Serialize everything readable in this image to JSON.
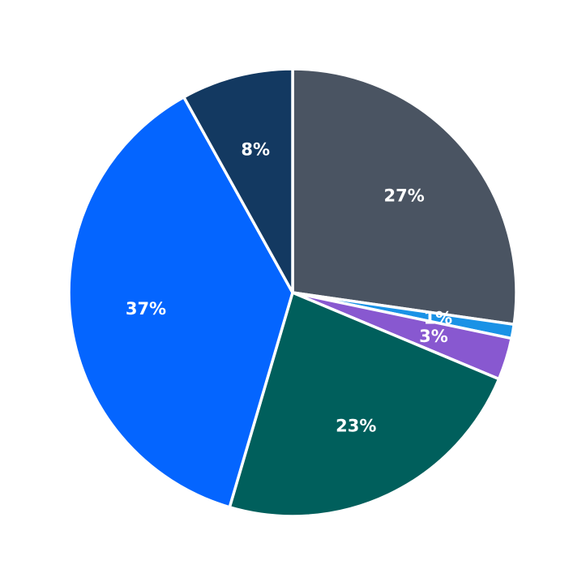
{
  "chart_data": {
    "type": "pie",
    "start": "top",
    "direction": "clockwise",
    "slices": [
      {
        "label": "27%",
        "value": 27,
        "color": "#4a5462"
      },
      {
        "label": "1%",
        "value": 1,
        "color": "#1a92e6"
      },
      {
        "label": "3%",
        "value": 3,
        "color": "#8858d0"
      },
      {
        "label": "23%",
        "value": 23,
        "color": "#005f5c"
      },
      {
        "label": "37%",
        "value": 37,
        "color": "#0465ff"
      },
      {
        "label": "8%",
        "value": 8,
        "color": "#133961"
      }
    ]
  }
}
